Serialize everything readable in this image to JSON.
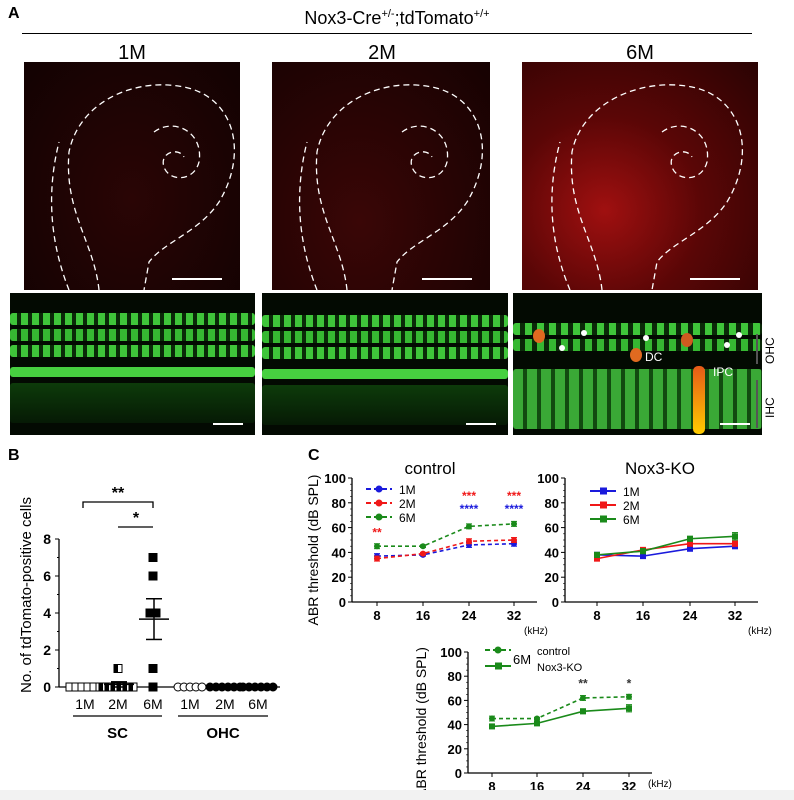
{
  "panel_a": {
    "letter": "A",
    "title_base": "Nox3-Cre",
    "title_sup1": "+/-",
    "title_mid": ";tdTomato",
    "title_sup2": "+/+",
    "columns": [
      "1M",
      "2M",
      "6M"
    ],
    "annotations": {
      "dc": "DC",
      "ipc": "IPC",
      "ohc": "OHC",
      "ihc": "IHC"
    }
  },
  "panel_b": {
    "letter": "B"
  },
  "panel_c": {
    "letter": "C"
  },
  "chart_data": [
    {
      "id": "B",
      "type": "scatter",
      "ylabel": "No. of tdTomato-positive cells",
      "ylim": [
        0,
        8
      ],
      "yticks": [
        0,
        2,
        4,
        6,
        8
      ],
      "groups": [
        {
          "name": "SC",
          "categories": [
            {
              "label": "1M",
              "values": [
                0,
                0,
                0,
                0,
                0,
                0
              ],
              "mean": 0,
              "sem": 0,
              "marker": "open-square"
            },
            {
              "label": "2M",
              "values": [
                1,
                0,
                0,
                0,
                0,
                0,
                0
              ],
              "mean": 0.14,
              "sem": 0.14,
              "marker": "half-square"
            },
            {
              "label": "6M",
              "values": [
                7,
                6,
                4,
                4,
                1,
                0
              ],
              "mean": 3.67,
              "sem": 1.1,
              "marker": "filled-square"
            }
          ]
        },
        {
          "name": "OHC",
          "categories": [
            {
              "label": "1M",
              "values": [
                0,
                0,
                0,
                0,
                0
              ],
              "marker": "open-circle"
            },
            {
              "label": "2M",
              "values": [
                0,
                0,
                0,
                0,
                0,
                0
              ],
              "marker": "half-circle"
            },
            {
              "label": "6M",
              "values": [
                0,
                0,
                0,
                0,
                0,
                0
              ],
              "marker": "filled-circle"
            }
          ]
        }
      ],
      "significance": [
        {
          "from": "SC 1M",
          "to": "SC 6M",
          "label": "**"
        },
        {
          "from": "SC 2M",
          "to": "SC 6M",
          "label": "*"
        }
      ]
    },
    {
      "id": "C-control",
      "type": "line",
      "title": "control",
      "xlabel": "(kHz)",
      "ylabel": "ABR threshold (dB SPL)",
      "x": [
        8,
        16,
        24,
        32
      ],
      "ylim": [
        0,
        100
      ],
      "yticks": [
        0,
        20,
        40,
        60,
        80,
        100
      ],
      "series": [
        {
          "name": "1M",
          "color": "#1a1adc",
          "dash": true,
          "marker": "circle",
          "values": [
            37,
            38,
            46,
            47
          ],
          "err": [
            2,
            1,
            2,
            2
          ]
        },
        {
          "name": "2M",
          "color": "#f01818",
          "dash": true,
          "marker": "circle",
          "values": [
            35,
            39,
            49,
            50
          ],
          "err": [
            2,
            1,
            2,
            2
          ]
        },
        {
          "name": "6M",
          "color": "#1a8a1a",
          "dash": true,
          "marker": "circle",
          "values": [
            45,
            45,
            61,
            63
          ],
          "err": [
            2,
            1,
            2,
            2
          ]
        }
      ],
      "annotations": [
        {
          "x": 8,
          "label": "**",
          "color": "#f01818",
          "level": 56
        },
        {
          "x": 24,
          "label": "***",
          "color": "#f01818",
          "level": 82
        },
        {
          "x": 24,
          "label": "****",
          "color": "#1a1adc",
          "level": 75
        },
        {
          "x": 32,
          "label": "***",
          "color": "#f01818",
          "level": 82
        },
        {
          "x": 32,
          "label": "****",
          "color": "#1a1adc",
          "level": 75
        }
      ]
    },
    {
      "id": "C-nox3ko",
      "type": "line",
      "title": "Nox3-KO",
      "xlabel": "(kHz)",
      "x": [
        8,
        16,
        24,
        32
      ],
      "ylim": [
        0,
        100
      ],
      "yticks": [
        0,
        20,
        40,
        60,
        80,
        100
      ],
      "series": [
        {
          "name": "1M",
          "color": "#1a1adc",
          "dash": false,
          "marker": "square",
          "values": [
            38,
            37,
            43,
            45
          ],
          "err": [
            2,
            1,
            2,
            2
          ]
        },
        {
          "name": "2M",
          "color": "#f01818",
          "dash": false,
          "marker": "square",
          "values": [
            35,
            42,
            47,
            47
          ],
          "err": [
            2,
            2,
            2,
            2
          ]
        },
        {
          "name": "6M",
          "color": "#1a8a1a",
          "dash": false,
          "marker": "square",
          "values": [
            38,
            41,
            51,
            53
          ],
          "err": [
            2,
            2,
            2,
            3
          ]
        }
      ]
    },
    {
      "id": "C-6M-compare",
      "type": "line",
      "xlabel": "(kHz)",
      "ylabel": "ABR threshold (dB SPL)",
      "legend_group": "6M",
      "x": [
        8,
        16,
        24,
        32
      ],
      "ylim": [
        0,
        100
      ],
      "yticks": [
        0,
        20,
        40,
        60,
        80,
        100
      ],
      "series": [
        {
          "name": "control",
          "color": "#1a8a1a",
          "dash": true,
          "marker": "circle",
          "values": [
            45,
            45,
            62,
            63
          ],
          "err": [
            2,
            1,
            2,
            2
          ]
        },
        {
          "name": "Nox3-KO",
          "color": "#1a8a1a",
          "dash": false,
          "marker": "square",
          "values": [
            38.5,
            41,
            51,
            53.5
          ],
          "err": [
            1,
            1,
            2,
            3
          ]
        }
      ],
      "annotations": [
        {
          "x": 24,
          "label": "**",
          "color": "#333333",
          "level": 74
        },
        {
          "x": 32,
          "label": "*",
          "color": "#333333",
          "level": 74
        }
      ]
    }
  ]
}
